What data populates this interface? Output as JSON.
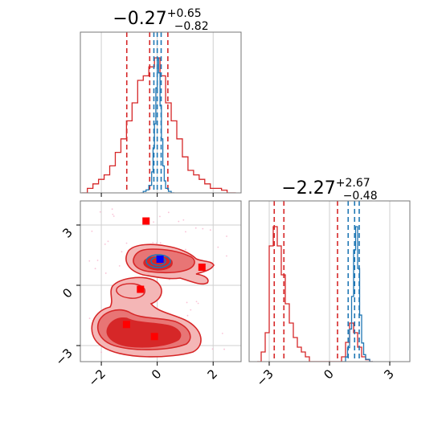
{
  "chart_data": [
    {
      "type": "histogram",
      "panel": "top-left",
      "title": {
        "main": "−0.27",
        "sup": "+0.65",
        "sub": "−0.82"
      },
      "xlim": [
        -2.75,
        3.0
      ],
      "xticks": [
        -2,
        0,
        2
      ],
      "grid": true,
      "series": [
        {
          "color": "#d62728",
          "x": [
            -2.7,
            -2.5,
            -2.3,
            -2.1,
            -1.9,
            -1.7,
            -1.5,
            -1.3,
            -1.1,
            -0.9,
            -0.7,
            -0.5,
            -0.3,
            -0.1,
            0.1,
            0.3,
            0.5,
            0.7,
            0.9,
            1.1,
            1.3,
            1.5,
            1.7,
            1.9,
            2.1,
            2.3,
            2.5,
            2.7
          ],
          "y": [
            0,
            0.5,
            1,
            1.5,
            2,
            3,
            4.5,
            6,
            8,
            10,
            12.5,
            13,
            14,
            15,
            13,
            10,
            8,
            6,
            4,
            2.5,
            2,
            1.5,
            1,
            0.5,
            0.5,
            0.3,
            0,
            0
          ],
          "quantiles": [
            -1.09,
            -0.27,
            0.38
          ]
        },
        {
          "color": "#1f77b4",
          "x": [
            -0.6,
            -0.5,
            -0.4,
            -0.3,
            -0.2,
            -0.15,
            -0.1,
            -0.05,
            0,
            0.05,
            0.1,
            0.15,
            0.2,
            0.25,
            0.3,
            0.4,
            0.5
          ],
          "y": [
            0,
            1,
            2,
            5,
            14,
            30,
            46,
            70,
            90,
            80,
            58,
            36,
            18,
            8,
            3,
            1,
            0
          ],
          "quantiles": [
            -0.12,
            0.0,
            0.14
          ]
        }
      ]
    },
    {
      "type": "histogram",
      "panel": "bottom-right",
      "title": {
        "main": "−2.27",
        "sup": "+2.67",
        "sub": "−0.48"
      },
      "xlim": [
        -4.0,
        4.0
      ],
      "xticks": [
        -3,
        0,
        3
      ],
      "grid": true,
      "series": [
        {
          "color": "#d62728",
          "x": [
            -3.6,
            -3.4,
            -3.2,
            -3.0,
            -2.8,
            -2.6,
            -2.4,
            -2.2,
            -2.0,
            -1.8,
            -1.6,
            -1.4,
            -1.2,
            -1.0,
            0.6,
            0.8,
            1.0,
            1.2,
            1.4,
            1.6,
            1.8,
            2.0
          ],
          "y": [
            0,
            1,
            3,
            12,
            14,
            12,
            9,
            6,
            4,
            2.5,
            1.5,
            1,
            0.5,
            0,
            0.5,
            2,
            4,
            3,
            1.5,
            0.5,
            0.2,
            0
          ],
          "quantiles": [
            -2.75,
            -2.27,
            0.4
          ]
        },
        {
          "color": "#1f77b4",
          "x": [
            0.6,
            0.8,
            0.9,
            1.0,
            1.1,
            1.2,
            1.3,
            1.4,
            1.5,
            1.6,
            1.7,
            1.8,
            2.0
          ],
          "y": [
            0,
            2,
            6,
            14,
            28,
            48,
            58,
            40,
            20,
            8,
            3,
            1,
            0
          ],
          "quantiles": [
            0.93,
            1.25,
            1.48
          ]
        }
      ]
    },
    {
      "type": "contour",
      "panel": "bottom-left",
      "xlim": [
        -2.75,
        3.0
      ],
      "ylim": [
        -3.8,
        4.2
      ],
      "xticks": [
        -2,
        0,
        2
      ],
      "yticks": [
        -3,
        0,
        3
      ],
      "grid": true,
      "markers": [
        {
          "x": -0.4,
          "y": 3.2,
          "color": "#ff0000"
        },
        {
          "x": 1.6,
          "y": 0.9,
          "color": "#ff0000"
        },
        {
          "x": -0.6,
          "y": -0.2,
          "color": "#ff0000"
        },
        {
          "x": -1.1,
          "y": -1.95,
          "color": "#ff0000"
        },
        {
          "x": -0.1,
          "y": -2.55,
          "color": "#ff0000"
        },
        {
          "x": 0.1,
          "y": 1.3,
          "color": "#0000ff"
        }
      ]
    }
  ]
}
